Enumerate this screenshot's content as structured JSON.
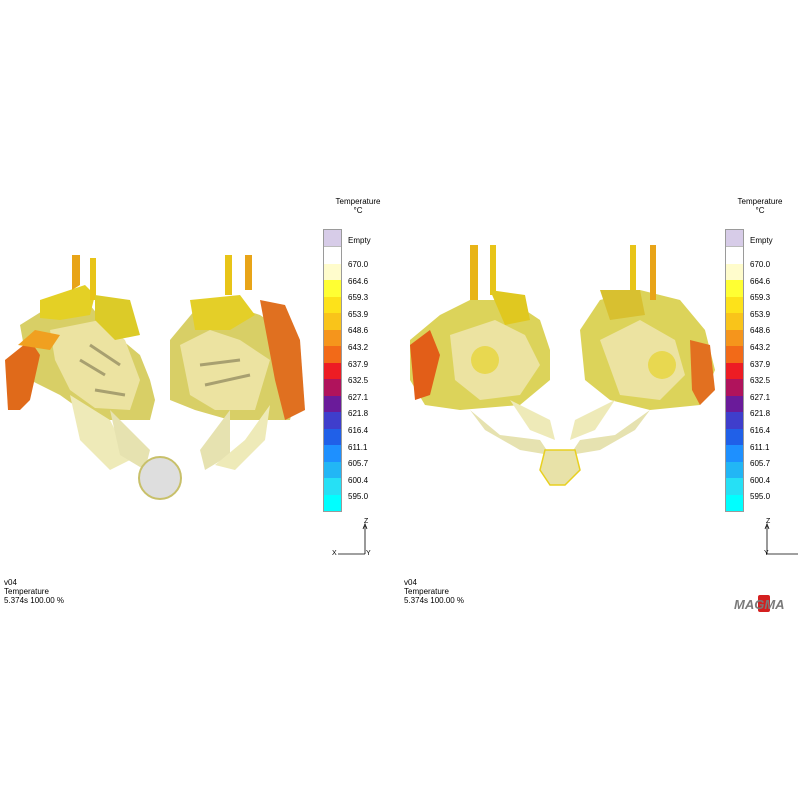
{
  "legend": {
    "title": "Temperature",
    "unit": "°C",
    "empty_label": "Empty",
    "values": [
      "670.0",
      "664.6",
      "659.3",
      "653.9",
      "648.6",
      "643.2",
      "637.9",
      "632.5",
      "627.1",
      "621.8",
      "616.4",
      "611.1",
      "605.7",
      "600.4",
      "595.0"
    ],
    "colors": [
      "#ffffff",
      "#fffccc",
      "#ffff33",
      "#fde21a",
      "#f9c41a",
      "#f5951c",
      "#f26a18",
      "#ed1c24",
      "#b0135c",
      "#6a1b9a",
      "#3f3ecc",
      "#2060e8",
      "#1e90ff",
      "#22b6f5",
      "#26e0f5",
      "#00ffff"
    ],
    "empty_color": "#d7cce8"
  },
  "left_view": {
    "version": "v04",
    "result": "Temperature",
    "time": "5.374s 100.00 %",
    "axes": {
      "up": "Z",
      "left": "X",
      "right": "Y"
    }
  },
  "right_view": {
    "version": "v04",
    "result": "Temperature",
    "time": "5.374s 100.00 %",
    "axes": {
      "up": "Z",
      "right": "Y"
    }
  },
  "logo_text": "MAGMA"
}
